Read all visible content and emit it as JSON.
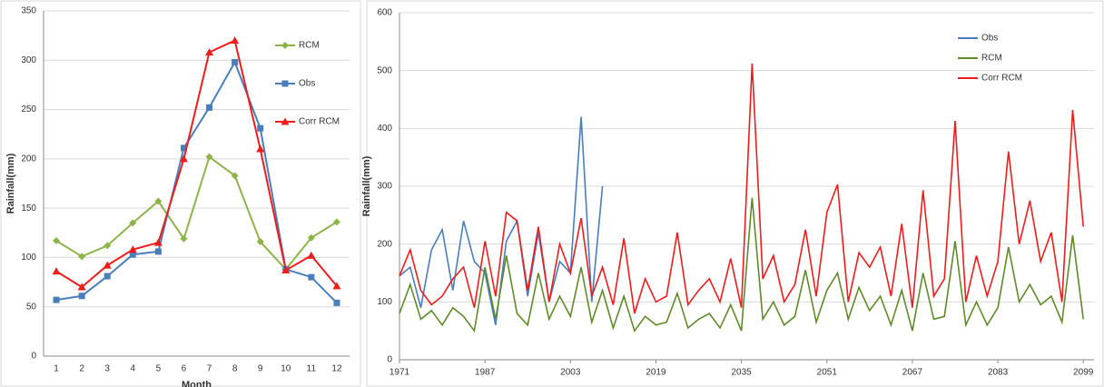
{
  "chart_data": [
    {
      "type": "line",
      "xlabel": "Month",
      "ylabel": "Rainfall(mm)",
      "categories": [
        "1",
        "2",
        "3",
        "4",
        "5",
        "6",
        "7",
        "8",
        "9",
        "10",
        "11",
        "12"
      ],
      "ylim": [
        0,
        350
      ],
      "yticks": [
        0,
        50,
        100,
        150,
        200,
        250,
        300,
        350
      ],
      "grid": true,
      "legend": "right",
      "series": [
        {
          "name": "RCM",
          "color": "#8db34a",
          "marker": "diamond",
          "values": [
            117,
            101,
            112,
            135,
            157,
            119,
            202,
            183,
            116,
            88,
            120,
            136
          ]
        },
        {
          "name": "Obs",
          "color": "#4a7ebb",
          "marker": "square",
          "values": [
            57,
            61,
            81,
            103,
            106,
            211,
            252,
            298,
            231,
            88,
            80,
            54
          ]
        },
        {
          "name": "Corr RCM",
          "color": "#ee1c1c",
          "marker": "triangle",
          "values": [
            86,
            70,
            92,
            108,
            115,
            200,
            308,
            320,
            210,
            87,
            102,
            71
          ]
        }
      ]
    },
    {
      "type": "line",
      "ylabel": "Rainfall(mm)",
      "x": [
        1971,
        1973,
        1975,
        1977,
        1979,
        1981,
        1983,
        1985,
        1987,
        1989,
        1991,
        1993,
        1995,
        1997,
        1999,
        2001,
        2003,
        2005,
        2007,
        2009,
        2011,
        2013,
        2015,
        2017,
        2019,
        2021,
        2023,
        2025,
        2027,
        2029,
        2031,
        2033,
        2035,
        2037,
        2039,
        2041,
        2043,
        2045,
        2047,
        2049,
        2051,
        2053,
        2055,
        2057,
        2059,
        2061,
        2063,
        2065,
        2067,
        2069,
        2071,
        2073,
        2075,
        2077,
        2079,
        2081,
        2083,
        2085,
        2087,
        2089,
        2091,
        2093,
        2095,
        2097,
        2099
      ],
      "xlim": [
        1971,
        2101
      ],
      "xticks": [
        1971,
        1987,
        2003,
        2019,
        2035,
        2051,
        2067,
        2083,
        2099
      ],
      "ylim": [
        0,
        600
      ],
      "yticks": [
        0,
        100,
        200,
        300,
        400,
        500,
        600
      ],
      "grid": true,
      "legend": "top-right",
      "series": [
        {
          "name": "Obs",
          "color": "#4a7ebb",
          "values": [
            145,
            160,
            90,
            190,
            225,
            120,
            240,
            170,
            150,
            60,
            205,
            240,
            110,
            220,
            100,
            170,
            150,
            420,
            100,
            300,
            null,
            null,
            null,
            null,
            null,
            null,
            null,
            null,
            null,
            null,
            null,
            null,
            null,
            null,
            null,
            null,
            null,
            null,
            null,
            null,
            null,
            null,
            null,
            null,
            null,
            null,
            null,
            null,
            null,
            null,
            null,
            null,
            null,
            null,
            null,
            null,
            null,
            null,
            null,
            null,
            null,
            null,
            null,
            null,
            null
          ]
        },
        {
          "name": "RCM",
          "color": "#5f8a2a",
          "values": [
            80,
            130,
            70,
            85,
            60,
            90,
            75,
            50,
            160,
            70,
            180,
            80,
            60,
            150,
            70,
            110,
            75,
            160,
            65,
            120,
            55,
            110,
            50,
            75,
            60,
            65,
            115,
            55,
            70,
            80,
            55,
            95,
            50,
            280,
            70,
            100,
            60,
            75,
            155,
            65,
            120,
            150,
            70,
            125,
            85,
            110,
            60,
            120,
            50,
            150,
            70,
            75,
            205,
            60,
            100,
            60,
            90,
            195,
            100,
            130,
            95,
            110,
            65,
            215,
            70
          ]
        },
        {
          "name": "Corr RCM",
          "color": "#ee1c1c",
          "values": [
            145,
            190,
            120,
            95,
            110,
            140,
            160,
            90,
            205,
            110,
            255,
            240,
            120,
            230,
            100,
            200,
            150,
            245,
            110,
            160,
            95,
            210,
            80,
            140,
            100,
            110,
            220,
            95,
            120,
            140,
            100,
            175,
            90,
            512,
            140,
            180,
            100,
            130,
            225,
            110,
            255,
            303,
            100,
            185,
            160,
            195,
            110,
            235,
            90,
            293,
            110,
            140,
            413,
            100,
            180,
            110,
            170,
            360,
            200,
            275,
            170,
            220,
            100,
            432,
            230
          ]
        }
      ]
    }
  ]
}
